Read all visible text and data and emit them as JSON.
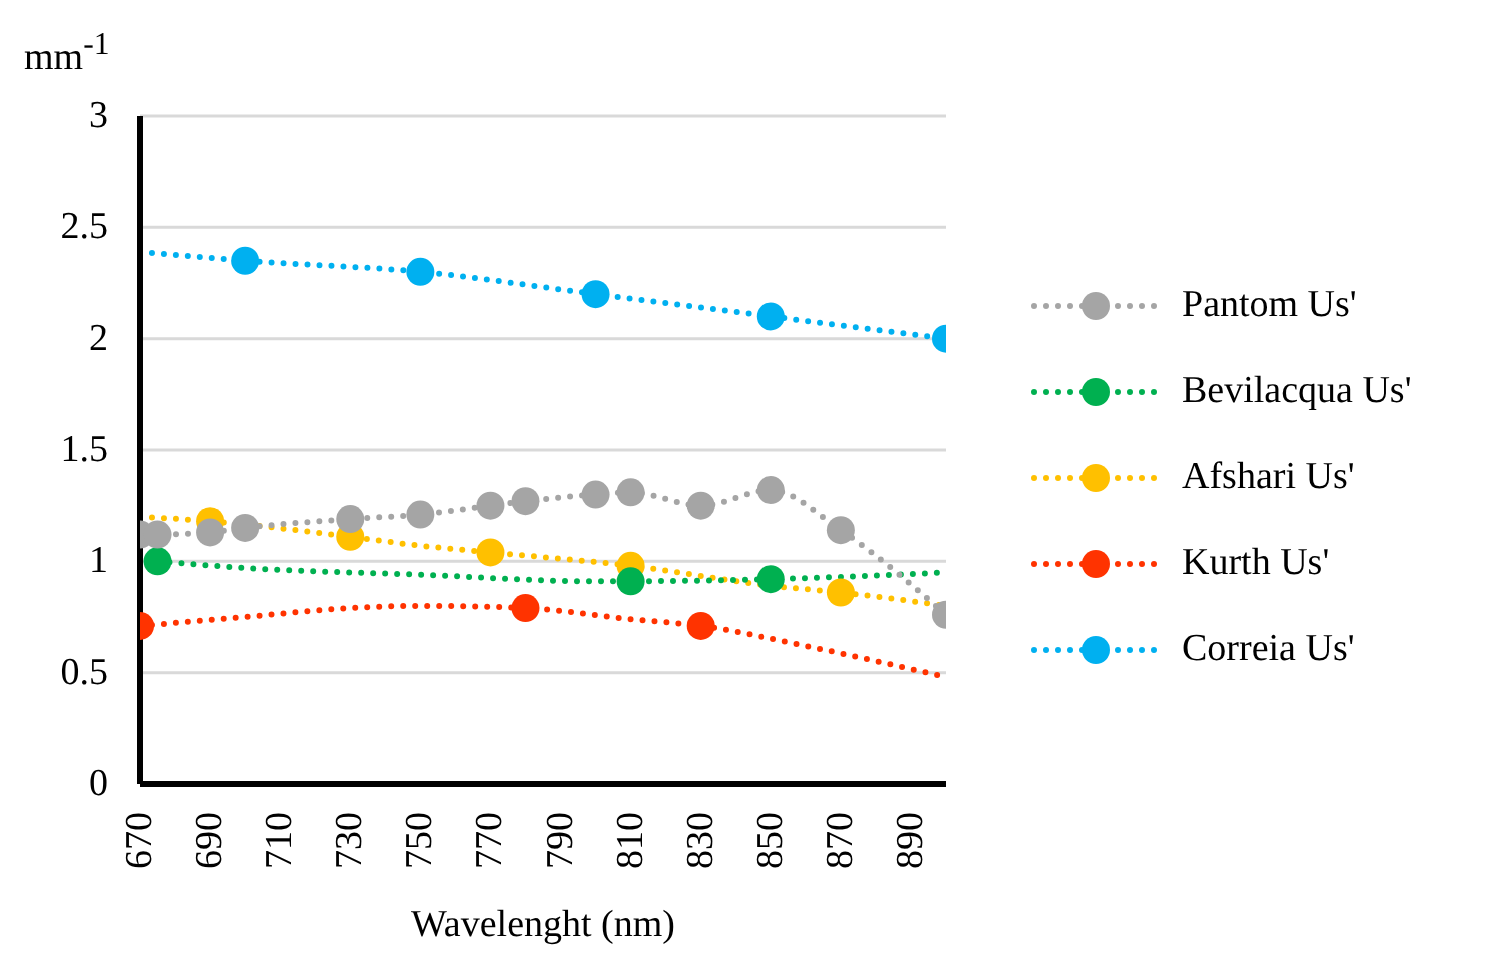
{
  "chart_data": {
    "type": "line",
    "xlabel": "Wavelenght (nm)",
    "ylabel": "mm$^{-1}$",
    "xlim": [
      670,
      900
    ],
    "xticks": [
      670,
      690,
      710,
      730,
      750,
      770,
      790,
      810,
      830,
      850,
      870,
      890
    ],
    "ylim": [
      0,
      3
    ],
    "yticks": [
      0,
      0.5,
      1,
      1.5,
      2,
      2.5,
      3
    ],
    "grid": "y",
    "legend": "right",
    "series": [
      {
        "name": "Pantom Us'",
        "color": "#a5a5a5",
        "marker": "circle",
        "line_style": "dotted",
        "x": [
          670,
          675,
          690,
          700,
          730,
          750,
          770,
          780,
          800,
          810,
          830,
          850,
          870,
          900
        ],
        "values": [
          1.12,
          1.12,
          1.13,
          1.15,
          1.19,
          1.21,
          1.25,
          1.27,
          1.3,
          1.31,
          1.25,
          1.32,
          1.14,
          0.76
        ]
      },
      {
        "name": "Bevilacqua Us'",
        "type": "scatter",
        "color": "#00b050",
        "marker": "circle",
        "x": [
          675,
          810,
          850
        ],
        "values": [
          1.0,
          0.91,
          0.92
        ]
      },
      {
        "color": "#00b050",
        "marker": "none",
        "line_style": "dotted",
        "x": [
          675,
          700,
          750,
          800,
          850,
          900
        ],
        "values": [
          1.0,
          0.97,
          0.94,
          0.91,
          0.92,
          0.95
        ]
      },
      {
        "name": "Afshari Us'",
        "type": "scatter",
        "color": "#ffc000",
        "marker": "circle",
        "x": [
          690,
          730,
          770,
          810,
          870
        ],
        "values": [
          1.18,
          1.11,
          1.04,
          0.98,
          0.86
        ]
      },
      {
        "color": "#ffc000",
        "marker": "none",
        "line_style": "dotted",
        "x": [
          670,
          690,
          730,
          750,
          770,
          810,
          850,
          870,
          900
        ],
        "values": [
          1.2,
          1.18,
          1.11,
          1.07,
          1.04,
          0.98,
          0.89,
          0.86,
          0.8
        ]
      },
      {
        "name": "Kurth Us'",
        "type": "scatter",
        "color": "#ff3300",
        "marker": "circle",
        "x": [
          670,
          780,
          830
        ],
        "values": [
          0.71,
          0.79,
          0.71
        ]
      },
      {
        "color": "#ff3300",
        "marker": "none",
        "line_style": "dotted",
        "x": [
          670,
          700,
          730,
          750,
          780,
          810,
          830,
          860,
          900
        ],
        "values": [
          0.71,
          0.75,
          0.79,
          0.8,
          0.79,
          0.74,
          0.71,
          0.62,
          0.48
        ]
      },
      {
        "name": "Correia Us'",
        "type": "scatter",
        "color": "#00b0f0",
        "marker": "circle",
        "x": [
          700,
          750,
          800,
          850,
          900
        ],
        "values": [
          2.35,
          2.3,
          2.2,
          2.1,
          2.0
        ]
      },
      {
        "color": "#00b0f0",
        "marker": "none",
        "line_style": "dotted",
        "x": [
          670,
          700,
          750,
          800,
          850,
          900
        ],
        "values": [
          2.39,
          2.35,
          2.3,
          2.2,
          2.1,
          2.0
        ]
      }
    ]
  }
}
